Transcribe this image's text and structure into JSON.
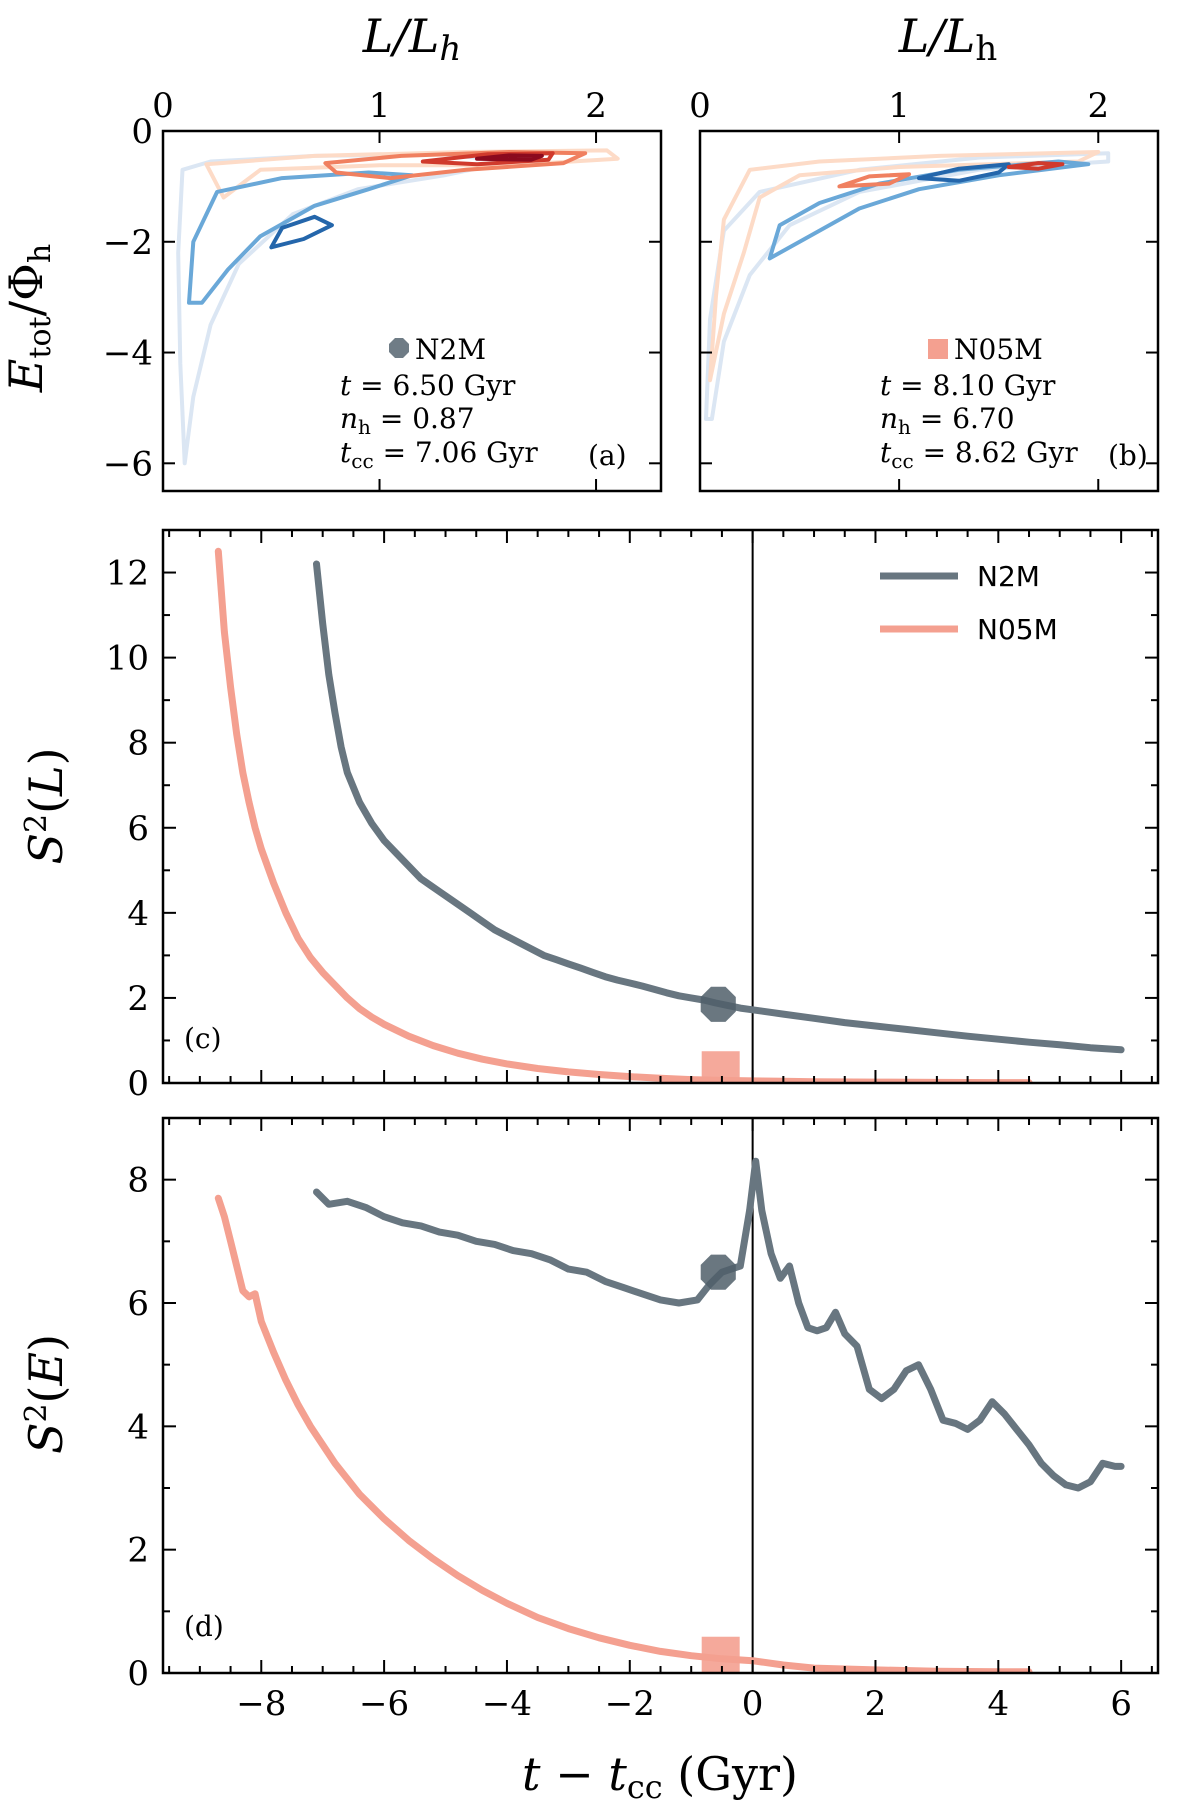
{
  "chart_data": [
    {
      "panel": "a",
      "type": "contour",
      "xlabel": "L/L_h",
      "ylabel": "E_tot/Φ_h",
      "xlim": [
        0,
        2.3
      ],
      "ylim": [
        -6.5,
        0
      ],
      "xticks": [
        "0",
        "1",
        "2"
      ],
      "yticks": [
        "0",
        "−2",
        "−4",
        "−6"
      ],
      "panel_label": "(a)",
      "model": "N2M",
      "annotation": {
        "t": "t = 6.50 Gyr",
        "n_h": "n_h = 0.87",
        "t_cc": "t_cc = 7.06 Gyr"
      },
      "levels": [
        {
          "color": "#dbe6f3",
          "points": [
            [
              0.1,
              -6.0
            ],
            [
              0.08,
              -4.2
            ],
            [
              0.07,
              -2.2
            ],
            [
              0.09,
              -0.7
            ],
            [
              0.22,
              -0.55
            ],
            [
              0.7,
              -0.45
            ],
            [
              1.3,
              -0.42
            ],
            [
              1.6,
              -0.55
            ],
            [
              1.3,
              -0.8
            ],
            [
              0.9,
              -1.05
            ],
            [
              0.6,
              -1.5
            ],
            [
              0.35,
              -2.4
            ],
            [
              0.22,
              -3.5
            ],
            [
              0.14,
              -4.8
            ],
            [
              0.1,
              -6.0
            ]
          ]
        },
        {
          "color": "#fddbc7",
          "points": [
            [
              0.2,
              -0.6
            ],
            [
              0.7,
              -0.45
            ],
            [
              1.4,
              -0.38
            ],
            [
              2.05,
              -0.35
            ],
            [
              2.1,
              -0.5
            ],
            [
              1.6,
              -0.62
            ],
            [
              1.0,
              -0.62
            ],
            [
              0.45,
              -0.7
            ],
            [
              0.28,
              -1.2
            ],
            [
              0.2,
              -0.6
            ]
          ]
        },
        {
          "color": "#6aa8d8",
          "points": [
            [
              0.12,
              -3.1
            ],
            [
              0.14,
              -2.0
            ],
            [
              0.25,
              -1.1
            ],
            [
              0.55,
              -0.85
            ],
            [
              0.95,
              -0.75
            ],
            [
              1.15,
              -0.8
            ],
            [
              0.95,
              -1.05
            ],
            [
              0.7,
              -1.35
            ],
            [
              0.45,
              -1.9
            ],
            [
              0.3,
              -2.5
            ],
            [
              0.18,
              -3.1
            ],
            [
              0.12,
              -3.1
            ]
          ]
        },
        {
          "color": "#f08060",
          "points": [
            [
              0.75,
              -0.58
            ],
            [
              1.1,
              -0.45
            ],
            [
              1.6,
              -0.38
            ],
            [
              1.95,
              -0.4
            ],
            [
              1.85,
              -0.58
            ],
            [
              1.4,
              -0.7
            ],
            [
              1.05,
              -0.85
            ],
            [
              0.8,
              -0.75
            ],
            [
              0.75,
              -0.58
            ]
          ]
        },
        {
          "color": "#d03a2c",
          "points": [
            [
              1.2,
              -0.55
            ],
            [
              1.5,
              -0.42
            ],
            [
              1.8,
              -0.4
            ],
            [
              1.78,
              -0.52
            ],
            [
              1.45,
              -0.6
            ],
            [
              1.2,
              -0.55
            ]
          ]
        },
        {
          "color": "#2466ab",
          "points": [
            [
              0.5,
              -2.1
            ],
            [
              0.55,
              -1.75
            ],
            [
              0.7,
              -1.55
            ],
            [
              0.78,
              -1.7
            ],
            [
              0.65,
              -1.95
            ],
            [
              0.5,
              -2.1
            ]
          ]
        },
        {
          "color": "#8b0a1e",
          "points": [
            [
              1.45,
              -0.5
            ],
            [
              1.6,
              -0.44
            ],
            [
              1.75,
              -0.45
            ],
            [
              1.7,
              -0.52
            ],
            [
              1.45,
              -0.5
            ]
          ]
        }
      ]
    },
    {
      "panel": "b",
      "type": "contour",
      "xlabel": "L/L_h",
      "xlim": [
        0,
        2.3
      ],
      "ylim": [
        -6.5,
        0
      ],
      "xticks": [
        "0",
        "1",
        "2"
      ],
      "panel_label": "(b)",
      "model": "N05M",
      "annotation": {
        "t": "t = 8.10 Gyr",
        "n_h": "n_h = 6.70",
        "t_cc": "t_cc = 8.62 Gyr"
      },
      "levels": [
        {
          "color": "#dbe6f3",
          "points": [
            [
              0.03,
              -5.2
            ],
            [
              0.05,
              -3.4
            ],
            [
              0.12,
              -1.8
            ],
            [
              0.3,
              -1.1
            ],
            [
              0.8,
              -0.7
            ],
            [
              1.4,
              -0.48
            ],
            [
              2.05,
              -0.4
            ],
            [
              2.05,
              -0.55
            ],
            [
              1.4,
              -0.7
            ],
            [
              0.8,
              -1.1
            ],
            [
              0.45,
              -1.7
            ],
            [
              0.25,
              -2.6
            ],
            [
              0.12,
              -3.8
            ],
            [
              0.06,
              -5.2
            ],
            [
              0.03,
              -5.2
            ]
          ]
        },
        {
          "color": "#fddbc7",
          "points": [
            [
              0.05,
              -4.5
            ],
            [
              0.08,
              -3.0
            ],
            [
              0.12,
              -1.6
            ],
            [
              0.25,
              -0.7
            ],
            [
              0.6,
              -0.55
            ],
            [
              1.2,
              -0.45
            ],
            [
              2.0,
              -0.38
            ],
            [
              1.9,
              -0.55
            ],
            [
              1.0,
              -0.65
            ],
            [
              0.5,
              -0.8
            ],
            [
              0.3,
              -1.2
            ],
            [
              0.22,
              -2.2
            ],
            [
              0.12,
              -3.3
            ],
            [
              0.05,
              -4.5
            ]
          ]
        },
        {
          "color": "#6aa8d8",
          "points": [
            [
              0.35,
              -2.3
            ],
            [
              0.4,
              -1.7
            ],
            [
              0.6,
              -1.3
            ],
            [
              0.9,
              -0.95
            ],
            [
              1.3,
              -0.7
            ],
            [
              1.8,
              -0.55
            ],
            [
              1.95,
              -0.6
            ],
            [
              1.5,
              -0.8
            ],
            [
              1.1,
              -1.05
            ],
            [
              0.8,
              -1.4
            ],
            [
              0.55,
              -1.9
            ],
            [
              0.35,
              -2.3
            ]
          ]
        },
        {
          "color": "#f08060",
          "points": [
            [
              0.7,
              -1.0
            ],
            [
              0.85,
              -0.82
            ],
            [
              1.05,
              -0.78
            ],
            [
              0.95,
              -0.95
            ],
            [
              0.7,
              -1.0
            ]
          ]
        },
        {
          "color": "#2466ab",
          "points": [
            [
              1.1,
              -0.85
            ],
            [
              1.3,
              -0.68
            ],
            [
              1.55,
              -0.6
            ],
            [
              1.5,
              -0.75
            ],
            [
              1.3,
              -0.9
            ],
            [
              1.1,
              -0.85
            ]
          ]
        },
        {
          "color": "#d03a2c",
          "points": [
            [
              1.55,
              -0.65
            ],
            [
              1.7,
              -0.58
            ],
            [
              1.82,
              -0.6
            ],
            [
              1.7,
              -0.68
            ],
            [
              1.55,
              -0.65
            ]
          ]
        }
      ]
    },
    {
      "panel": "c",
      "type": "line",
      "xlabel": "",
      "ylabel": "S²(L)",
      "xlim": [
        -9.6,
        6.6
      ],
      "ylim": [
        0,
        13
      ],
      "yticks": [
        "0",
        "2",
        "4",
        "6",
        "8",
        "10",
        "12"
      ],
      "panel_label": "(c)",
      "vline_x": 0,
      "legend": [
        "N2M",
        "N05M"
      ],
      "series": [
        {
          "name": "N2M",
          "color": "#687680",
          "x": [
            -7.1,
            -7.0,
            -6.9,
            -6.8,
            -6.7,
            -6.6,
            -6.4,
            -6.2,
            -6.0,
            -5.8,
            -5.6,
            -5.4,
            -5.2,
            -5.0,
            -4.8,
            -4.6,
            -4.4,
            -4.2,
            -4.0,
            -3.8,
            -3.6,
            -3.4,
            -3.2,
            -3.0,
            -2.8,
            -2.6,
            -2.4,
            -2.2,
            -2.0,
            -1.8,
            -1.6,
            -1.4,
            -1.2,
            -1.0,
            -0.8,
            -0.6,
            -0.4,
            -0.2,
            0.0,
            0.5,
            1.0,
            1.5,
            2.0,
            2.5,
            3.0,
            3.5,
            4.0,
            4.5,
            5.0,
            5.5,
            6.0
          ],
          "values": [
            12.2,
            10.8,
            9.6,
            8.7,
            7.9,
            7.3,
            6.6,
            6.1,
            5.7,
            5.4,
            5.1,
            4.8,
            4.6,
            4.4,
            4.2,
            4.0,
            3.8,
            3.6,
            3.45,
            3.3,
            3.15,
            3.0,
            2.9,
            2.8,
            2.7,
            2.6,
            2.5,
            2.42,
            2.35,
            2.28,
            2.2,
            2.12,
            2.05,
            2.0,
            1.95,
            1.88,
            1.82,
            1.76,
            1.72,
            1.62,
            1.52,
            1.42,
            1.34,
            1.26,
            1.18,
            1.1,
            1.03,
            0.96,
            0.9,
            0.83,
            0.78
          ]
        },
        {
          "name": "N05M",
          "color": "#f4a090",
          "x": [
            -8.7,
            -8.6,
            -8.5,
            -8.4,
            -8.3,
            -8.2,
            -8.1,
            -8.0,
            -7.8,
            -7.6,
            -7.4,
            -7.2,
            -7.0,
            -6.8,
            -6.6,
            -6.4,
            -6.2,
            -6.0,
            -5.6,
            -5.2,
            -4.8,
            -4.4,
            -4.0,
            -3.5,
            -3.0,
            -2.5,
            -2.0,
            -1.5,
            -1.0,
            -0.5,
            0.0,
            0.5,
            1.0,
            2.0,
            3.0,
            4.0,
            4.5
          ],
          "values": [
            12.5,
            10.6,
            9.3,
            8.2,
            7.3,
            6.6,
            6.0,
            5.5,
            4.7,
            4.0,
            3.4,
            2.95,
            2.6,
            2.3,
            2.0,
            1.75,
            1.55,
            1.38,
            1.1,
            0.88,
            0.7,
            0.56,
            0.45,
            0.34,
            0.26,
            0.2,
            0.15,
            0.11,
            0.08,
            0.06,
            0.05,
            0.04,
            0.03,
            0.02,
            0.015,
            0.01,
            0.01
          ]
        }
      ],
      "markers": [
        {
          "model": "N2M",
          "shape": "octagon",
          "x": -0.56,
          "y": 1.85,
          "color": "#505f6a"
        },
        {
          "model": "N05M",
          "shape": "square",
          "x": -0.52,
          "y": 0.3,
          "color": "#f4a090"
        }
      ]
    },
    {
      "panel": "d",
      "type": "line",
      "xlabel": "t − t_cc (Gyr)",
      "ylabel": "S²(E)",
      "xlim": [
        -9.6,
        6.6
      ],
      "ylim": [
        0,
        9
      ],
      "xticks": [
        "−8",
        "−6",
        "−4",
        "−2",
        "0",
        "2",
        "4",
        "6"
      ],
      "yticks": [
        "0",
        "2",
        "4",
        "6",
        "8"
      ],
      "panel_label": "(d)",
      "vline_x": 0,
      "series": [
        {
          "name": "N2M",
          "color": "#687680",
          "x": [
            -7.1,
            -6.9,
            -6.6,
            -6.3,
            -6.0,
            -5.7,
            -5.4,
            -5.1,
            -4.8,
            -4.5,
            -4.2,
            -3.9,
            -3.6,
            -3.3,
            -3.0,
            -2.7,
            -2.4,
            -2.1,
            -1.8,
            -1.5,
            -1.2,
            -0.9,
            -0.7,
            -0.5,
            -0.35,
            -0.2,
            -0.05,
            0.05,
            0.15,
            0.3,
            0.45,
            0.6,
            0.75,
            0.9,
            1.05,
            1.2,
            1.35,
            1.5,
            1.7,
            1.9,
            2.1,
            2.3,
            2.5,
            2.7,
            2.9,
            3.1,
            3.3,
            3.5,
            3.7,
            3.9,
            4.1,
            4.3,
            4.5,
            4.7,
            4.9,
            5.1,
            5.3,
            5.5,
            5.7,
            5.9,
            6.0
          ],
          "values": [
            7.8,
            7.6,
            7.65,
            7.55,
            7.4,
            7.3,
            7.25,
            7.15,
            7.1,
            7.0,
            6.95,
            6.85,
            6.8,
            6.7,
            6.55,
            6.5,
            6.35,
            6.25,
            6.15,
            6.05,
            6.0,
            6.05,
            6.3,
            6.5,
            6.55,
            6.6,
            7.5,
            8.3,
            7.5,
            6.8,
            6.4,
            6.6,
            6.0,
            5.6,
            5.55,
            5.6,
            5.85,
            5.5,
            5.3,
            4.6,
            4.45,
            4.6,
            4.9,
            5.0,
            4.6,
            4.1,
            4.05,
            3.95,
            4.1,
            4.4,
            4.2,
            3.95,
            3.7,
            3.4,
            3.2,
            3.05,
            3.0,
            3.1,
            3.4,
            3.35,
            3.35
          ]
        },
        {
          "name": "N05M",
          "color": "#f4a090",
          "x": [
            -8.7,
            -8.6,
            -8.5,
            -8.4,
            -8.3,
            -8.2,
            -8.1,
            -8.0,
            -7.8,
            -7.6,
            -7.4,
            -7.2,
            -7.0,
            -6.8,
            -6.6,
            -6.4,
            -6.2,
            -6.0,
            -5.6,
            -5.2,
            -4.8,
            -4.4,
            -4.0,
            -3.5,
            -3.0,
            -2.5,
            -2.0,
            -1.5,
            -1.0,
            -0.5,
            0.0,
            0.5,
            1.0,
            2.0,
            3.0,
            4.0,
            4.5
          ],
          "values": [
            7.7,
            7.4,
            7.0,
            6.6,
            6.2,
            6.1,
            6.15,
            5.7,
            5.2,
            4.75,
            4.35,
            4.0,
            3.7,
            3.4,
            3.15,
            2.9,
            2.7,
            2.5,
            2.15,
            1.85,
            1.58,
            1.34,
            1.13,
            0.9,
            0.72,
            0.57,
            0.45,
            0.35,
            0.28,
            0.23,
            0.2,
            0.13,
            0.08,
            0.05,
            0.03,
            0.02,
            0.02
          ]
        }
      ],
      "markers": [
        {
          "model": "N2M",
          "shape": "octagon",
          "x": -0.56,
          "y": 6.5,
          "color": "#505f6a"
        },
        {
          "model": "N05M",
          "shape": "square",
          "x": -0.52,
          "y": 0.28,
          "color": "#f4a090"
        }
      ]
    }
  ]
}
